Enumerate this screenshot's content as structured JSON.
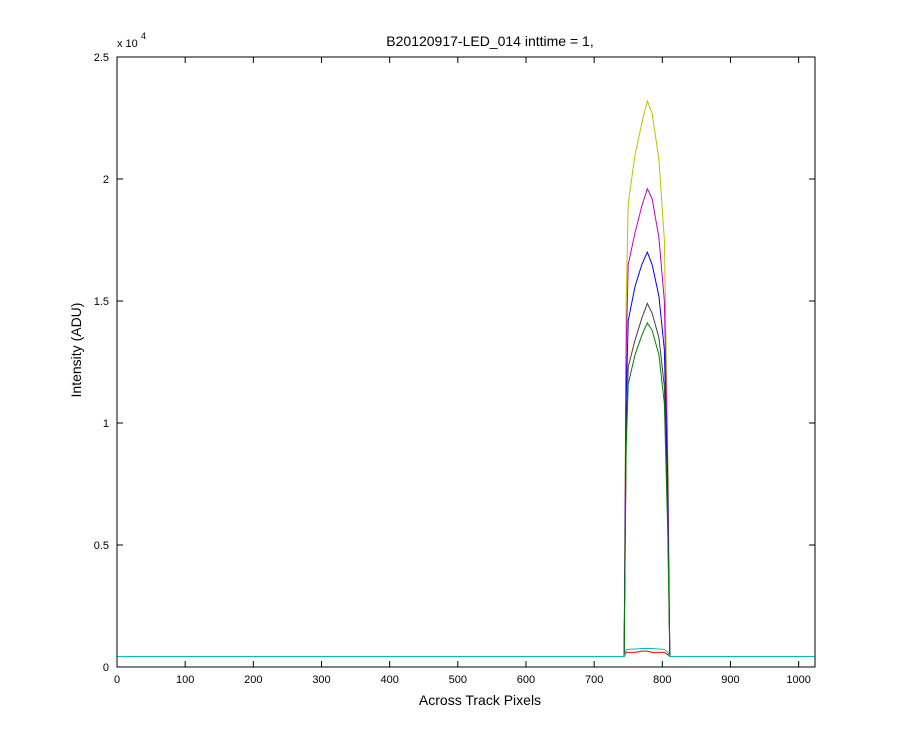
{
  "chart_data": {
    "type": "line",
    "title": "B20120917-LED_014 inttime = 1,",
    "x_label": "Across Track Pixels",
    "y_label": "Intensity (ADU)",
    "y_multiplier": {
      "base": "x 10",
      "exponent": "4"
    },
    "xlim": [
      0,
      1024
    ],
    "ylim": [
      0,
      25000
    ],
    "xticks": [
      0,
      100,
      200,
      300,
      400,
      500,
      600,
      700,
      800,
      900,
      1000
    ],
    "yticks": [
      0,
      {
        "value": 5000,
        "label": "0.5"
      },
      {
        "value": 10000,
        "label": "1"
      },
      {
        "value": 15000,
        "label": "1.5"
      },
      {
        "value": 20000,
        "label": "2"
      },
      {
        "value": 25000,
        "label": "2.5"
      }
    ],
    "x": [
      0,
      700,
      744,
      747,
      750,
      760,
      770,
      778,
      785,
      795,
      803,
      808,
      811,
      1024
    ],
    "series": [
      {
        "color": "#bfbf00",
        "values": [
          430,
          430,
          430,
          15000,
          19000,
          21000,
          22300,
          23200,
          22700,
          20800,
          17500,
          9000,
          430,
          430
        ]
      },
      {
        "color": "#bf00bf",
        "values": [
          430,
          430,
          430,
          13000,
          16500,
          17800,
          18900,
          19600,
          19200,
          17600,
          15000,
          8000,
          430,
          430
        ]
      },
      {
        "color": "#0000ff",
        "values": [
          430,
          430,
          430,
          11000,
          14200,
          15600,
          16500,
          17000,
          16500,
          15200,
          13000,
          7000,
          430,
          430
        ]
      },
      {
        "color": "#404040",
        "values": [
          430,
          430,
          430,
          9500,
          12300,
          13400,
          14300,
          14900,
          14500,
          13500,
          11500,
          6000,
          430,
          430
        ]
      },
      {
        "color": "#008000",
        "values": [
          430,
          430,
          430,
          9000,
          11600,
          12800,
          13600,
          14100,
          13800,
          12800,
          10800,
          5500,
          430,
          430
        ]
      },
      {
        "color": "#ff0000",
        "values": [
          430,
          430,
          430,
          600,
          600,
          600,
          650,
          650,
          600,
          600,
          600,
          500,
          430,
          430
        ]
      },
      {
        "color": "#00bfbf",
        "values": [
          430,
          430,
          430,
          700,
          720,
          740,
          760,
          760,
          760,
          740,
          720,
          600,
          430,
          430
        ]
      }
    ]
  }
}
